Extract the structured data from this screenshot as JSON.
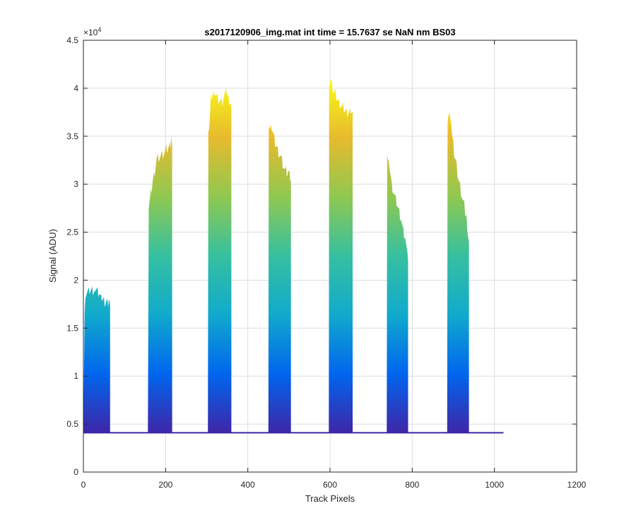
{
  "figure": {
    "background": "#ffffff"
  },
  "chart_data": {
    "type": "area",
    "title": "s2017120906_img.mat int time = 15.7637 se  NaN nm BS03",
    "xlabel": "Track Pixels",
    "ylabel": "Signal (ADU)",
    "y_exponent_label": "×10",
    "y_exponent_power": "4",
    "xlim": [
      0,
      1200
    ],
    "ylim": [
      0,
      45000
    ],
    "x_ticks": [
      0,
      200,
      400,
      600,
      800,
      1000,
      1200
    ],
    "x_tick_labels": [
      "0",
      "200",
      "400",
      "600",
      "800",
      "1000",
      "1200"
    ],
    "y_ticks": [
      0,
      5000,
      10000,
      15000,
      20000,
      25000,
      30000,
      35000,
      40000,
      45000
    ],
    "y_tick_labels": [
      "0",
      "0.5",
      "1",
      "1.5",
      "2",
      "2.5",
      "3",
      "3.5",
      "4",
      "4.5"
    ],
    "grid": true,
    "baseline": 4100,
    "x_end": 1022,
    "colormap": [
      "#3e26a8",
      "#0066ee",
      "#11aacc",
      "#36c0a0",
      "#90c850",
      "#e8ba2e",
      "#f9fb15"
    ],
    "peaks": [
      {
        "x_start": 0,
        "x_end": 65,
        "envelope": [
          [
            0,
            4500
          ],
          [
            3,
            17000
          ],
          [
            5,
            18500
          ],
          [
            15,
            18800
          ],
          [
            28,
            19000
          ],
          [
            38,
            18600
          ],
          [
            45,
            17800
          ],
          [
            55,
            17600
          ],
          [
            62,
            17700
          ],
          [
            65,
            17400
          ]
        ]
      },
      {
        "x_start": 157,
        "x_end": 216,
        "envelope": [
          [
            157,
            4500
          ],
          [
            159,
            27500
          ],
          [
            168,
            30000
          ],
          [
            178,
            32500
          ],
          [
            190,
            33000
          ],
          [
            200,
            33500
          ],
          [
            210,
            34000
          ],
          [
            214,
            34500
          ],
          [
            216,
            34000
          ]
        ]
      },
      {
        "x_start": 303,
        "x_end": 360,
        "envelope": [
          [
            303,
            4500
          ],
          [
            304,
            35000
          ],
          [
            310,
            39000
          ],
          [
            318,
            39800
          ],
          [
            328,
            38800
          ],
          [
            338,
            38500
          ],
          [
            348,
            39800
          ],
          [
            355,
            38500
          ],
          [
            360,
            38000
          ]
        ]
      },
      {
        "x_start": 450,
        "x_end": 505,
        "envelope": [
          [
            450,
            4500
          ],
          [
            451,
            36000
          ],
          [
            458,
            35800
          ],
          [
            468,
            34000
          ],
          [
            478,
            33000
          ],
          [
            490,
            31500
          ],
          [
            498,
            31200
          ],
          [
            505,
            30500
          ]
        ]
      },
      {
        "x_start": 597,
        "x_end": 655,
        "envelope": [
          [
            597,
            4500
          ],
          [
            598,
            40000
          ],
          [
            603,
            40500
          ],
          [
            612,
            39500
          ],
          [
            622,
            38500
          ],
          [
            632,
            38000
          ],
          [
            642,
            37500
          ],
          [
            650,
            37800
          ],
          [
            655,
            37500
          ]
        ]
      },
      {
        "x_start": 738,
        "x_end": 790,
        "envelope": [
          [
            738,
            4500
          ],
          [
            739,
            33500
          ],
          [
            745,
            32000
          ],
          [
            752,
            29500
          ],
          [
            762,
            28000
          ],
          [
            772,
            26500
          ],
          [
            780,
            24500
          ],
          [
            785,
            23800
          ],
          [
            790,
            22000
          ]
        ]
      },
      {
        "x_start": 885,
        "x_end": 938,
        "envelope": [
          [
            885,
            4500
          ],
          [
            886,
            36500
          ],
          [
            890,
            37500
          ],
          [
            897,
            35000
          ],
          [
            905,
            32500
          ],
          [
            915,
            30000
          ],
          [
            925,
            28000
          ],
          [
            932,
            26500
          ],
          [
            938,
            24000
          ]
        ]
      }
    ]
  }
}
